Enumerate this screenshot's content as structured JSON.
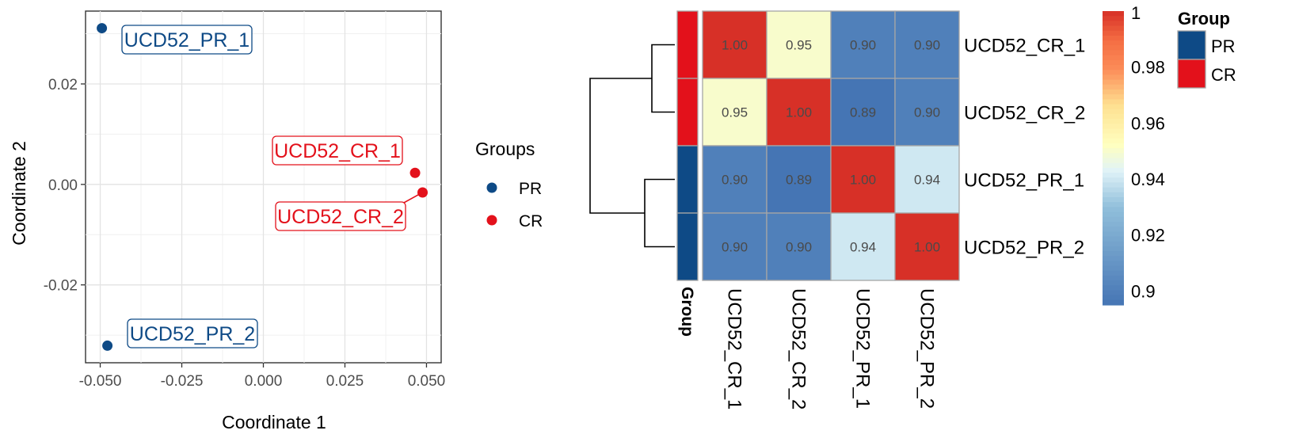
{
  "chart_data": [
    {
      "type": "scatter",
      "title": "",
      "xlabel": "Coordinate 1",
      "ylabel": "Coordinate 2",
      "xlim": [
        -0.0545,
        0.0545
      ],
      "ylim": [
        -0.0355,
        0.0345
      ],
      "xticks": [
        -0.05,
        -0.025,
        0.0,
        0.025,
        0.05
      ],
      "xtick_labels": [
        "-0.050",
        "-0.025",
        "0.000",
        "0.025",
        "0.050"
      ],
      "yticks": [
        -0.02,
        0.0,
        0.02
      ],
      "ytick_labels": [
        "-0.02",
        "0.00",
        "0.02"
      ],
      "grid": true,
      "legend": {
        "title": "Groups",
        "position": "right",
        "entries": [
          "PR",
          "CR"
        ]
      },
      "points": [
        {
          "label": "UCD52_PR_1",
          "group": "PR",
          "x": -0.0495,
          "y": 0.0311
        },
        {
          "label": "UCD52_PR_2",
          "group": "PR",
          "x": -0.0478,
          "y": -0.0321
        },
        {
          "label": "UCD52_CR_1",
          "group": "CR",
          "x": 0.0465,
          "y": 0.0023
        },
        {
          "label": "UCD52_CR_2",
          "group": "CR",
          "x": 0.0488,
          "y": -0.0016
        }
      ],
      "colors": {
        "PR": "#0e4a86",
        "CR": "#e3111b"
      }
    },
    {
      "type": "heatmap",
      "title": "",
      "rows": [
        "UCD52_CR_1",
        "UCD52_CR_2",
        "UCD52_PR_1",
        "UCD52_PR_2"
      ],
      "columns": [
        "UCD52_CR_1",
        "UCD52_CR_2",
        "UCD52_PR_1",
        "UCD52_PR_2"
      ],
      "values": [
        [
          1.0,
          0.95,
          0.9,
          0.9
        ],
        [
          0.95,
          1.0,
          0.89,
          0.9
        ],
        [
          0.9,
          0.89,
          1.0,
          0.94
        ],
        [
          0.9,
          0.9,
          0.94,
          1.0
        ]
      ],
      "value_labels": [
        [
          "1.00",
          "0.95",
          "0.90",
          "0.90"
        ],
        [
          "0.95",
          "1.00",
          "0.89",
          "0.90"
        ],
        [
          "0.90",
          "0.89",
          "1.00",
          "0.94"
        ],
        [
          "0.90",
          "0.90",
          "0.94",
          "1.00"
        ]
      ],
      "row_groups": [
        "CR",
        "CR",
        "PR",
        "PR"
      ],
      "annotation_label": "Group",
      "annotation_legend": {
        "title": "Group",
        "entries": [
          "PR",
          "CR"
        ]
      },
      "colorbar": {
        "range": [
          0.895,
          1.0
        ],
        "ticks": [
          1,
          0.98,
          0.96,
          0.94,
          0.92,
          0.9
        ],
        "tick_labels": [
          "1",
          "0.98",
          "0.96",
          "0.94",
          "0.92",
          "0.9"
        ]
      },
      "dendrogram": "rows",
      "colors": {
        "PR": "#0e4a86",
        "CR": "#e3111b"
      }
    }
  ]
}
